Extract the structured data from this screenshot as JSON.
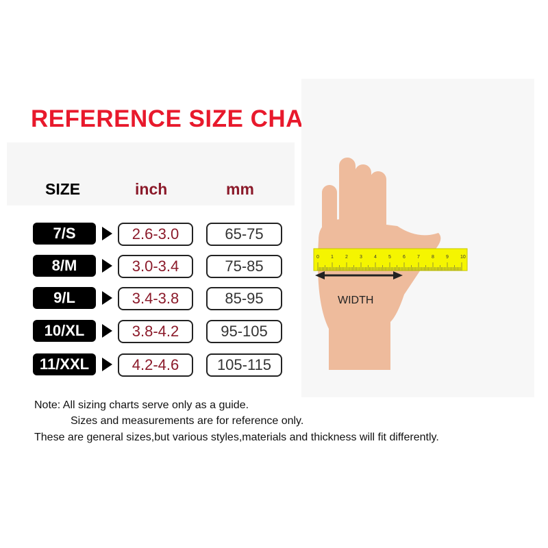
{
  "title": "REFERENCE SIZE CHART",
  "headers": {
    "size": "SIZE",
    "inch": "inch",
    "mm": "mm"
  },
  "rows": [
    {
      "size": "7/S",
      "inch": "2.6-3.0",
      "mm": "65-75"
    },
    {
      "size": "8/M",
      "inch": "3.0-3.4",
      "mm": "75-85"
    },
    {
      "size": "9/L",
      "inch": "3.4-3.8",
      "mm": "85-95"
    },
    {
      "size": "10/XL",
      "inch": "3.8-4.2",
      "mm": "95-105"
    },
    {
      "size": "11/XXL",
      "inch": "4.2-4.6",
      "mm": "105-115"
    }
  ],
  "illustration": {
    "label": "WIDTH",
    "ruler_ticks": [
      "0",
      "1",
      "2",
      "3",
      "4",
      "5",
      "6",
      "7",
      "8",
      "9",
      "10"
    ]
  },
  "notes": [
    "Note: All sizing charts serve only as a guide.",
    "Sizes and measurements are for reference only.",
    "These are general sizes,but various styles,materials and thickness will fit differently."
  ],
  "colors": {
    "title": "#e8192c",
    "inch": "#8b1a2a",
    "ruler": "#f5f500",
    "skin": "#eebb9c"
  }
}
